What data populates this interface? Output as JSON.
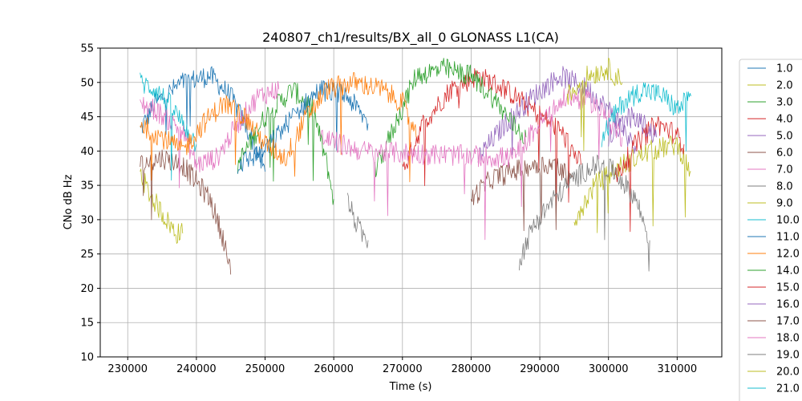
{
  "chart_data": {
    "type": "line",
    "title": "240807_ch1/results/BX_all_0 GLONASS L1(CA)",
    "xlabel": "Time (s)",
    "ylabel": "CNo dB Hz",
    "xlim": [
      226000,
      316500
    ],
    "ylim": [
      10,
      55
    ],
    "x_ticks": [
      230000,
      240000,
      250000,
      260000,
      270000,
      280000,
      290000,
      300000,
      310000
    ],
    "y_ticks": [
      10,
      15,
      20,
      25,
      30,
      35,
      40,
      45,
      50,
      55
    ],
    "grid": true,
    "legend_position": "right-outside",
    "series": [
      {
        "name": "1.0",
        "color": "#1f77b4",
        "points": [
          [
            231800,
            43
          ],
          [
            234000,
            47
          ],
          [
            238000,
            50
          ],
          [
            242000,
            51
          ],
          [
            245000,
            48
          ],
          [
            248000,
            42
          ],
          [
            250000,
            37
          ]
        ]
      },
      {
        "name": "2.0",
        "color": "#bcbd22",
        "points": [
          [
            231800,
            37
          ],
          [
            233000,
            34
          ],
          [
            235000,
            31
          ],
          [
            237000,
            28
          ],
          [
            238000,
            28
          ]
        ]
      },
      {
        "name": "3.0",
        "color": "#2ca02c",
        "points": [
          [
            246000,
            38
          ],
          [
            250000,
            45
          ],
          [
            254000,
            49
          ],
          [
            257000,
            46
          ],
          [
            259000,
            38
          ],
          [
            260000,
            33
          ]
        ]
      },
      {
        "name": "4.0",
        "color": "#d62728",
        "points": [
          [
            270000,
            37
          ],
          [
            273000,
            44
          ],
          [
            277000,
            49
          ],
          [
            281000,
            51
          ],
          [
            285000,
            49
          ],
          [
            289000,
            46
          ],
          [
            293000,
            43
          ],
          [
            296000,
            38
          ]
        ]
      },
      {
        "name": "5.0",
        "color": "#9467bd",
        "points": [
          [
            281000,
            39
          ],
          [
            285000,
            44
          ],
          [
            289000,
            48
          ],
          [
            293000,
            51
          ],
          [
            297000,
            49
          ],
          [
            301000,
            45
          ],
          [
            304000,
            40
          ]
        ]
      },
      {
        "name": "6.0",
        "color": "#8c564b",
        "points": [
          [
            231800,
            38
          ],
          [
            235000,
            39
          ],
          [
            238000,
            38
          ],
          [
            242000,
            33
          ],
          [
            244000,
            27
          ],
          [
            245000,
            22
          ]
        ]
      },
      {
        "name": "7.0",
        "color": "#e377c2",
        "points": [
          [
            231800,
            47
          ],
          [
            234000,
            46
          ],
          [
            238000,
            43
          ],
          [
            240000,
            38
          ],
          [
            243000,
            39
          ],
          [
            246000,
            44
          ],
          [
            249000,
            48
          ],
          [
            252000,
            49
          ]
        ]
      },
      {
        "name": "8.0",
        "color": "#7f7f7f",
        "points": [
          [
            262000,
            33
          ],
          [
            263000,
            30
          ],
          [
            264000,
            28
          ],
          [
            265000,
            27
          ]
        ]
      },
      {
        "name": "9.0",
        "color": "#bcbd22",
        "points": [
          [
            295000,
            30
          ],
          [
            298000,
            35
          ],
          [
            302000,
            38
          ],
          [
            306000,
            40
          ],
          [
            310000,
            41
          ],
          [
            312000,
            37
          ]
        ]
      },
      {
        "name": "10.0",
        "color": "#17becf",
        "points": [
          [
            231800,
            50
          ],
          [
            234000,
            49
          ],
          [
            236000,
            47
          ],
          [
            238000,
            44
          ],
          [
            240000,
            41
          ]
        ]
      },
      {
        "name": "11.0",
        "color": "#1f77b4",
        "points": [
          [
            246000,
            38
          ],
          [
            250000,
            40
          ],
          [
            254000,
            45
          ],
          [
            258000,
            49
          ],
          [
            262000,
            48
          ],
          [
            265000,
            44
          ]
        ]
      },
      {
        "name": "12.0",
        "color": "#ff7f0e",
        "points": [
          [
            231800,
            44
          ],
          [
            235000,
            42
          ],
          [
            238000,
            40
          ],
          [
            241000,
            44
          ],
          [
            244000,
            47
          ],
          [
            247000,
            45
          ],
          [
            250000,
            41
          ],
          [
            253000,
            39
          ],
          [
            256000,
            45
          ],
          [
            259000,
            49
          ],
          [
            263000,
            50
          ],
          [
            267000,
            49
          ],
          [
            270000,
            47
          ],
          [
            272000,
            42
          ]
        ]
      },
      {
        "name": "14.0",
        "color": "#2ca02c",
        "points": [
          [
            266000,
            37
          ],
          [
            269000,
            44
          ],
          [
            272000,
            51
          ],
          [
            276000,
            52
          ],
          [
            280000,
            51
          ],
          [
            283000,
            48
          ],
          [
            286000,
            44
          ],
          [
            288000,
            42
          ]
        ]
      },
      {
        "name": "15.0",
        "color": "#d62728",
        "points": [
          [
            301000,
            36
          ],
          [
            304000,
            41
          ],
          [
            307000,
            44
          ],
          [
            309000,
            43
          ],
          [
            311000,
            41
          ]
        ]
      },
      {
        "name": "16.0",
        "color": "#9467bd",
        "points": [
          [
            300000,
            42
          ],
          [
            303000,
            45
          ],
          [
            305000,
            44
          ],
          [
            307000,
            42
          ]
        ]
      },
      {
        "name": "17.0",
        "color": "#8c564b",
        "points": [
          [
            280000,
            33
          ],
          [
            283000,
            36
          ],
          [
            286000,
            37
          ],
          [
            289000,
            38
          ],
          [
            292000,
            38
          ],
          [
            295000,
            36
          ]
        ]
      },
      {
        "name": "18.0",
        "color": "#e377c2",
        "points": [
          [
            258000,
            42
          ],
          [
            261000,
            41
          ],
          [
            264000,
            40
          ],
          [
            286000,
            39
          ],
          [
            290000,
            44
          ],
          [
            294000,
            48
          ],
          [
            298000,
            47
          ],
          [
            302000,
            42
          ]
        ]
      },
      {
        "name": "19.0",
        "color": "#7f7f7f",
        "points": [
          [
            287000,
            24
          ],
          [
            289000,
            29
          ],
          [
            292000,
            33
          ],
          [
            295000,
            36
          ],
          [
            298000,
            38
          ],
          [
            301000,
            37
          ],
          [
            304000,
            33
          ],
          [
            306000,
            27
          ]
        ]
      },
      {
        "name": "20.0",
        "color": "#bcbd22",
        "points": [
          [
            294000,
            48
          ],
          [
            297000,
            51
          ],
          [
            300000,
            52
          ],
          [
            302000,
            50
          ]
        ]
      },
      {
        "name": "21.0",
        "color": "#17becf",
        "points": [
          [
            299000,
            42
          ],
          [
            302000,
            47
          ],
          [
            305000,
            49
          ],
          [
            308000,
            48
          ],
          [
            310000,
            46
          ],
          [
            312000,
            48
          ]
        ]
      }
    ]
  }
}
